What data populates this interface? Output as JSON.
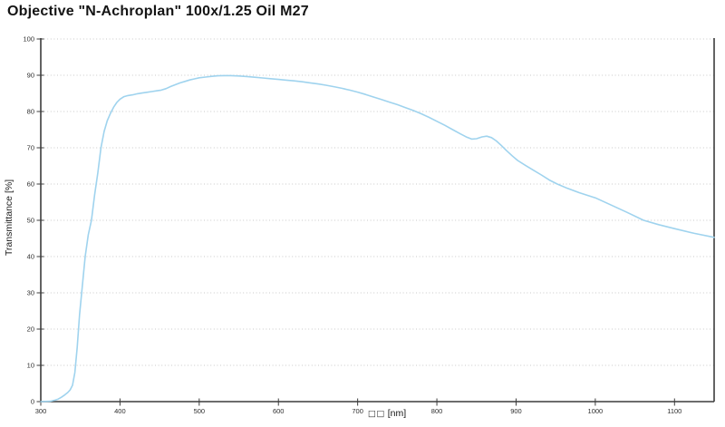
{
  "chart_data": {
    "type": "line",
    "title": "Objective \"N-Achroplan\" 100x/1.25 Oil M27",
    "xlabel": "[nm]",
    "xlabel_prefix": "□□",
    "ylabel": "Transmittance [%]",
    "xlim": [
      300,
      1150
    ],
    "ylim": [
      0,
      100
    ],
    "x_ticks": [
      300,
      400,
      500,
      600,
      700,
      800,
      900,
      1000,
      1100
    ],
    "y_ticks": [
      0,
      10,
      20,
      30,
      40,
      50,
      60,
      70,
      80,
      90,
      100
    ],
    "grid": "horizontal-dotted",
    "legend": "none",
    "line_color": "#9fd3ee",
    "axis_color": "#3c3c3c",
    "grid_color": "#c9c9c9",
    "tick_label_color": "#2e2e2e",
    "series": [
      {
        "name": "Transmittance",
        "points": [
          [
            300,
            0
          ],
          [
            312,
            0.1
          ],
          [
            318,
            0.4
          ],
          [
            322,
            0.7
          ],
          [
            326,
            1.2
          ],
          [
            330,
            1.8
          ],
          [
            334,
            2.5
          ],
          [
            337,
            3.2
          ],
          [
            340,
            4.5
          ],
          [
            343,
            8
          ],
          [
            346,
            15
          ],
          [
            349,
            24
          ],
          [
            352,
            31
          ],
          [
            356,
            40
          ],
          [
            360,
            46
          ],
          [
            364,
            50
          ],
          [
            368,
            57
          ],
          [
            372,
            63
          ],
          [
            376,
            70
          ],
          [
            380,
            74.5
          ],
          [
            384,
            77.5
          ],
          [
            388,
            79.5
          ],
          [
            392,
            81.2
          ],
          [
            396,
            82.5
          ],
          [
            400,
            83.4
          ],
          [
            405,
            84.1
          ],
          [
            410,
            84.4
          ],
          [
            416,
            84.6
          ],
          [
            422,
            84.9
          ],
          [
            428,
            85.1
          ],
          [
            434,
            85.3
          ],
          [
            440,
            85.5
          ],
          [
            446,
            85.7
          ],
          [
            452,
            85.9
          ],
          [
            458,
            86.3
          ],
          [
            464,
            86.9
          ],
          [
            470,
            87.4
          ],
          [
            476,
            87.9
          ],
          [
            482,
            88.3
          ],
          [
            488,
            88.7
          ],
          [
            494,
            89.0
          ],
          [
            500,
            89.3
          ],
          [
            508,
            89.5
          ],
          [
            516,
            89.7
          ],
          [
            524,
            89.85
          ],
          [
            532,
            89.9
          ],
          [
            540,
            89.9
          ],
          [
            550,
            89.8
          ],
          [
            560,
            89.65
          ],
          [
            570,
            89.45
          ],
          [
            580,
            89.25
          ],
          [
            590,
            89.05
          ],
          [
            600,
            88.85
          ],
          [
            610,
            88.65
          ],
          [
            620,
            88.45
          ],
          [
            630,
            88.2
          ],
          [
            640,
            87.9
          ],
          [
            650,
            87.6
          ],
          [
            660,
            87.25
          ],
          [
            670,
            86.85
          ],
          [
            680,
            86.4
          ],
          [
            690,
            85.9
          ],
          [
            700,
            85.35
          ],
          [
            710,
            84.7
          ],
          [
            720,
            84.0
          ],
          [
            730,
            83.3
          ],
          [
            740,
            82.6
          ],
          [
            750,
            81.9
          ],
          [
            760,
            81.1
          ],
          [
            770,
            80.3
          ],
          [
            780,
            79.4
          ],
          [
            790,
            78.4
          ],
          [
            800,
            77.3
          ],
          [
            810,
            76.2
          ],
          [
            820,
            75.0
          ],
          [
            830,
            73.8
          ],
          [
            838,
            72.9
          ],
          [
            844,
            72.4
          ],
          [
            850,
            72.5
          ],
          [
            857,
            73.0
          ],
          [
            863,
            73.2
          ],
          [
            869,
            72.8
          ],
          [
            875,
            71.9
          ],
          [
            881,
            70.7
          ],
          [
            888,
            69.2
          ],
          [
            895,
            67.8
          ],
          [
            902,
            66.5
          ],
          [
            912,
            65.1
          ],
          [
            922,
            63.8
          ],
          [
            932,
            62.5
          ],
          [
            942,
            61.1
          ],
          [
            952,
            60.0
          ],
          [
            965,
            58.8
          ],
          [
            980,
            57.6
          ],
          [
            1000,
            56.2
          ],
          [
            1020,
            54.2
          ],
          [
            1040,
            52.2
          ],
          [
            1061,
            50.0
          ],
          [
            1080,
            48.8
          ],
          [
            1100,
            47.7
          ],
          [
            1125,
            46.4
          ],
          [
            1150,
            45.3
          ]
        ]
      }
    ]
  }
}
